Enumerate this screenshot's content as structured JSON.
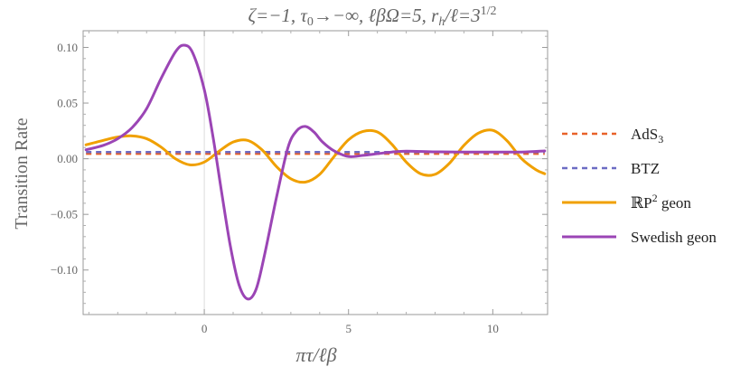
{
  "chart_data": {
    "type": "line",
    "title": "ζ=−1, τ₀→−∞, ℓβΩ=5, r_h/ℓ=3^{1/2}",
    "title_parts": {
      "zeta": "ζ=−1, ",
      "tau": "τ",
      "tau_sub": "0",
      "tau_rest": "→−∞, ℓβΩ=5, ",
      "r": "r",
      "r_sub": "h",
      "r_rest": "/ℓ=3",
      "r_sup": "1/2"
    },
    "xlabel": "πτ/ℓβ",
    "ylabel": "Transition Rate",
    "xlim": [
      -4.2,
      11.9
    ],
    "ylim": [
      -0.14,
      0.115
    ],
    "x_ticks": [
      0,
      5,
      10
    ],
    "y_ticks": [
      0.1,
      0.05,
      0.0,
      -0.05,
      -0.1
    ],
    "x_tick_labels": [
      "0",
      "5",
      "10"
    ],
    "y_tick_labels": [
      "0.10",
      "0.05",
      "0.00",
      "−0.05",
      "−0.10"
    ],
    "series": [
      {
        "name": "AdS3",
        "legend_main": "AdS",
        "legend_sub": "3",
        "color": "#e8622a",
        "dash": true,
        "x": [
          -4.1,
          11.8
        ],
        "y": [
          0.0045,
          0.0045
        ]
      },
      {
        "name": "BTZ",
        "legend_main": "BTZ",
        "legend_sub": "",
        "color": "#6c6cc4",
        "dash": true,
        "x": [
          -4.1,
          11.8
        ],
        "y": [
          0.006,
          0.006
        ]
      },
      {
        "name": "RP2 geon",
        "legend_main": "ℝP",
        "legend_sup": "2",
        "legend_rest": " geon",
        "color": "#f0a000",
        "dash": false,
        "x": [
          -4.1,
          -3.5,
          -3.0,
          -2.5,
          -2.0,
          -1.5,
          -1.0,
          -0.5,
          0.0,
          0.5,
          1.0,
          1.5,
          2.0,
          2.5,
          3.0,
          3.5,
          4.0,
          4.5,
          5.0,
          5.5,
          6.0,
          6.5,
          7.0,
          7.5,
          8.0,
          8.5,
          9.0,
          9.5,
          10.0,
          10.5,
          11.0,
          11.5,
          11.8
        ],
        "y": [
          0.0125,
          0.0165,
          0.0195,
          0.0205,
          0.018,
          0.0105,
          0.0,
          -0.0055,
          -0.003,
          0.0065,
          0.015,
          0.0165,
          0.008,
          -0.007,
          -0.018,
          -0.021,
          -0.014,
          0.002,
          0.017,
          0.0245,
          0.024,
          0.013,
          -0.003,
          -0.0135,
          -0.014,
          -0.004,
          0.012,
          0.023,
          0.0255,
          0.016,
          0.0,
          -0.01,
          -0.0135
        ]
      },
      {
        "name": "Swedish geon",
        "legend_main": "Swedish geon",
        "legend_sub": "",
        "color": "#9b45b5",
        "dash": false,
        "x": [
          -4.1,
          -3.5,
          -3.0,
          -2.5,
          -2.0,
          -1.5,
          -1.0,
          -0.7,
          -0.4,
          0.0,
          0.3,
          0.6,
          0.9,
          1.2,
          1.5,
          1.8,
          2.1,
          2.5,
          2.9,
          3.2,
          3.5,
          3.8,
          4.1,
          4.5,
          5.0,
          5.5,
          6.0,
          6.5,
          7.0,
          8.0,
          9.0,
          10.0,
          11.0,
          11.8
        ],
        "y": [
          0.008,
          0.012,
          0.018,
          0.028,
          0.045,
          0.072,
          0.096,
          0.102,
          0.095,
          0.062,
          0.02,
          -0.03,
          -0.078,
          -0.113,
          -0.126,
          -0.117,
          -0.085,
          -0.035,
          0.01,
          0.025,
          0.029,
          0.024,
          0.015,
          0.007,
          0.002,
          0.003,
          0.0045,
          0.006,
          0.0068,
          0.0062,
          0.006,
          0.006,
          0.006,
          0.007
        ]
      }
    ],
    "legend_position": "right",
    "grid": false
  }
}
